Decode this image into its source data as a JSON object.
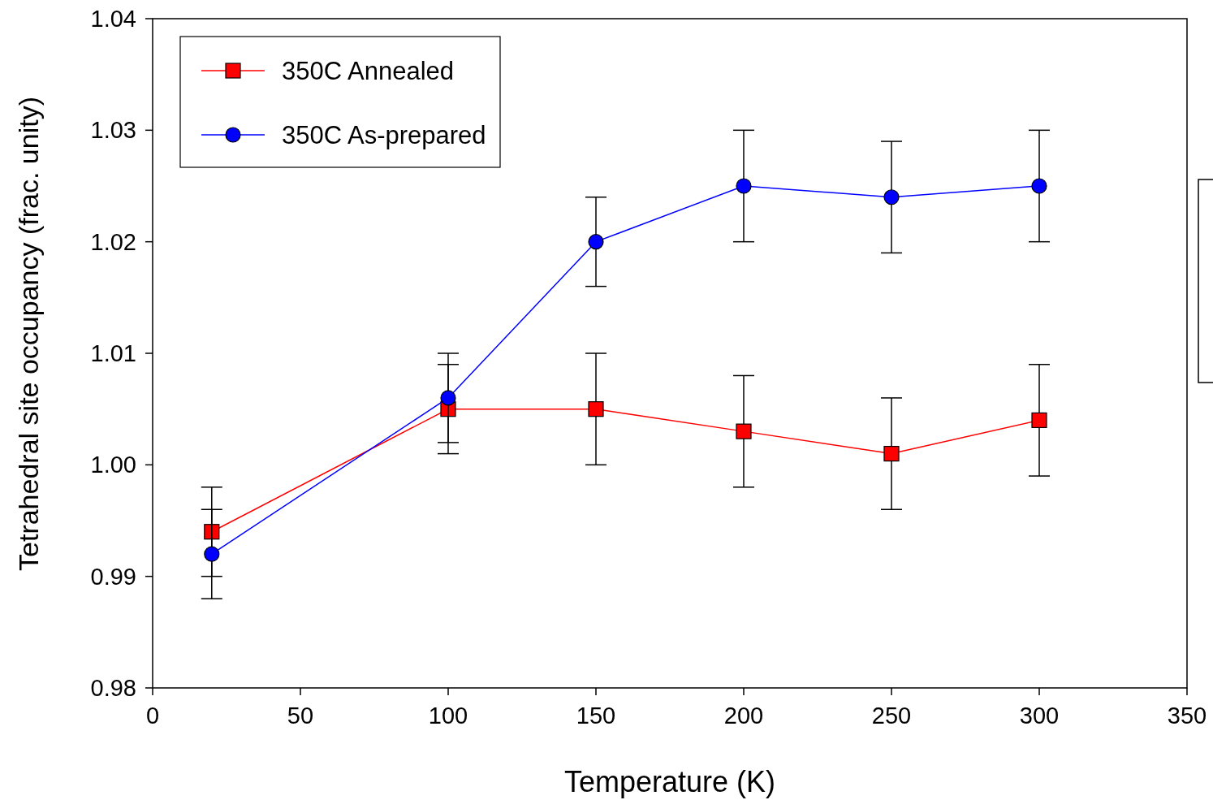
{
  "chart_data": {
    "type": "line",
    "xlabel": "Temperature (K)",
    "ylabel": "Tetrahedral site occupancy (frac. unity)",
    "xlim": [
      0,
      350
    ],
    "xticks": [
      0,
      50,
      100,
      150,
      200,
      250,
      300,
      350
    ],
    "ylim": [
      0.98,
      1.04
    ],
    "yticks": [
      {
        "value": 0.98,
        "label": "0.98"
      },
      {
        "value": 0.99,
        "label": "0.99"
      },
      {
        "value": 1.0,
        "label": "1.00"
      },
      {
        "value": 1.01,
        "label": "1.01"
      },
      {
        "value": 1.02,
        "label": "1.02"
      },
      {
        "value": 1.03,
        "label": "1.03"
      },
      {
        "value": 1.04,
        "label": "1.04"
      }
    ],
    "grid": false,
    "legend": "top left",
    "line_style": "solid",
    "series": [
      {
        "name": "350C Annealed",
        "color": "#ff0000",
        "marker": "square",
        "x": [
          20,
          100,
          150,
          200,
          250,
          300
        ],
        "values": [
          0.994,
          1.005,
          1.005,
          1.003,
          1.001,
          1.004
        ],
        "errors": [
          0.004,
          0.004,
          0.005,
          0.005,
          0.005,
          0.005
        ]
      },
      {
        "name": "350C As-prepared",
        "color": "#0000ff",
        "marker": "circle",
        "x": [
          20,
          100,
          150,
          200,
          250,
          300
        ],
        "values": [
          0.992,
          1.006,
          1.02,
          1.025,
          1.024,
          1.025
        ],
        "errors": [
          0.004,
          0.004,
          0.004,
          0.005,
          0.005,
          0.005
        ]
      }
    ]
  }
}
